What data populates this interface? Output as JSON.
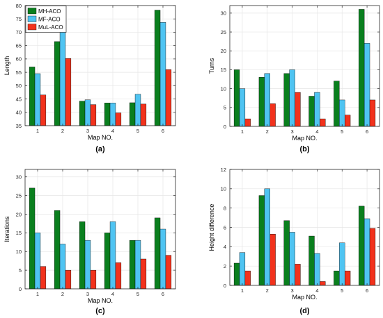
{
  "legend": {
    "entries": [
      "MH-ACO",
      "MF-ACO",
      "MuL-ACO"
    ]
  },
  "colors": {
    "series": [
      "#0a7f1e",
      "#4fc4f2",
      "#f2321c"
    ],
    "edge": "#000000",
    "grid": "#e6e6e6",
    "axis": "#262626"
  },
  "chart_data": [
    {
      "type": "bar",
      "panel_label": "(a)",
      "categories": [
        "1",
        "2",
        "3",
        "4",
        "5",
        "6"
      ],
      "xlabel": "Map NO.",
      "ylabel": "Length",
      "ylim": [
        35,
        80
      ],
      "yticks": [
        35,
        40,
        45,
        50,
        55,
        60,
        65,
        70,
        75,
        80
      ],
      "grid": true,
      "legend": "top-left",
      "series": [
        {
          "name": "MH-ACO",
          "values": [
            57,
            66.5,
            44.2,
            43.5,
            43.6,
            78.3
          ]
        },
        {
          "name": "MF-ACO",
          "values": [
            54.5,
            74.2,
            44.7,
            43.5,
            46.8,
            73.7
          ]
        },
        {
          "name": "MuL-ACO",
          "values": [
            46.5,
            60.2,
            42.9,
            39.8,
            43.1,
            56
          ]
        }
      ]
    },
    {
      "type": "bar",
      "panel_label": "(b)",
      "categories": [
        "1",
        "2",
        "3",
        "4",
        "5",
        "6"
      ],
      "xlabel": "Map NO.",
      "ylabel": "Turns",
      "ylim": [
        0,
        32
      ],
      "yticks": [
        0,
        5,
        10,
        15,
        20,
        25,
        30
      ],
      "grid": true,
      "series": [
        {
          "name": "MH-ACO",
          "values": [
            15,
            13,
            14,
            8,
            12,
            31
          ]
        },
        {
          "name": "MF-ACO",
          "values": [
            10,
            14,
            15,
            9,
            7,
            22
          ]
        },
        {
          "name": "MuL-ACO",
          "values": [
            2,
            6,
            9,
            2,
            3,
            7
          ]
        }
      ]
    },
    {
      "type": "bar",
      "panel_label": "(c)",
      "categories": [
        "1",
        "2",
        "3",
        "4",
        "5",
        "6"
      ],
      "xlabel": "Map NO.",
      "ylabel": "Iterations",
      "ylim": [
        0,
        32
      ],
      "yticks": [
        0,
        5,
        10,
        15,
        20,
        25,
        30
      ],
      "grid": true,
      "series": [
        {
          "name": "MH-ACO",
          "values": [
            27,
            21,
            18,
            15,
            13,
            19
          ]
        },
        {
          "name": "MF-ACO",
          "values": [
            15,
            12,
            13,
            18,
            13,
            16
          ]
        },
        {
          "name": "MuL-ACO",
          "values": [
            6,
            5,
            5,
            7,
            8,
            9
          ]
        }
      ]
    },
    {
      "type": "bar",
      "panel_label": "(d)",
      "categories": [
        "1",
        "2",
        "3",
        "4",
        "5",
        "6"
      ],
      "xlabel": "Map NO.",
      "ylabel": "Height difference",
      "ylim": [
        0,
        12
      ],
      "yticks": [
        0,
        2,
        4,
        6,
        8,
        10,
        12
      ],
      "grid": true,
      "series": [
        {
          "name": "MH-ACO",
          "values": [
            2.3,
            9.3,
            6.7,
            5.1,
            1.5,
            8.2
          ]
        },
        {
          "name": "MF-ACO",
          "values": [
            3.4,
            10,
            5.5,
            3.3,
            4.4,
            6.9
          ]
        },
        {
          "name": "MuL-ACO",
          "values": [
            1.5,
            5.3,
            2.2,
            0.4,
            1.5,
            5.9
          ]
        }
      ]
    }
  ]
}
